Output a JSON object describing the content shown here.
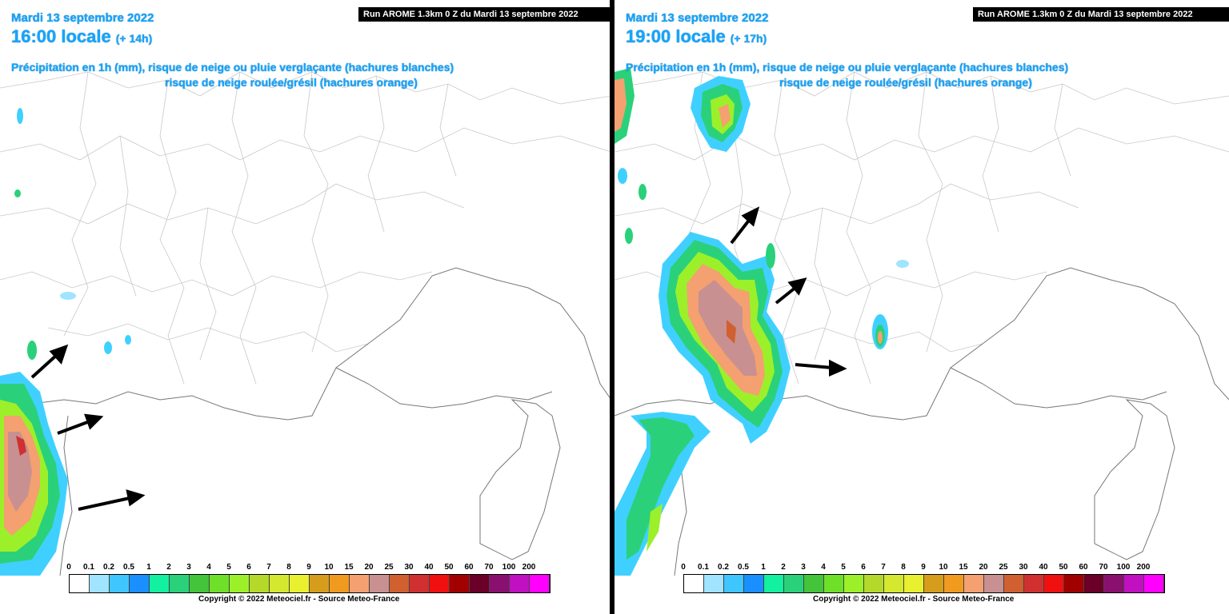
{
  "left_panel": {
    "date": "Mardi 13 septembre 2022",
    "time": "16:00 locale",
    "lead": "(+ 14h)",
    "run": "Run AROME 1.3km 0 Z du Mardi 13 septembre 2022",
    "description_line1": "Précipitation en 1h (mm), risque de neige ou pluie verglaçante (hachures blanches)",
    "description_line2": "risque de neige roulée/grésil (hachures orange)",
    "copyright": "Copyright © 2022 Meteociel.fr - Source Meteo-France"
  },
  "right_panel": {
    "date": "Mardi 13 septembre 2022",
    "time": "19:00 locale",
    "lead": "(+ 17h)",
    "run": "Run AROME 1.3km 0 Z du Mardi 13 septembre 2022",
    "description_line1": "Précipitation en 1h (mm), risque de neige ou pluie verglaçante (hachures blanches)",
    "description_line2": "risque de neige roulée/grésil (hachures orange)",
    "copyright": "Copyright © 2022 Meteociel.fr - Source Meteo-France"
  },
  "legend": {
    "labels": [
      "0",
      "0.1",
      "0.2",
      "0.5",
      "1",
      "2",
      "3",
      "4",
      "5",
      "6",
      "7",
      "8",
      "9",
      "10",
      "15",
      "20",
      "25",
      "30",
      "40",
      "50",
      "60",
      "70",
      "100",
      "200"
    ],
    "colors": [
      "#ffffff",
      "#a0e4ff",
      "#3fc6ff",
      "#1a8fff",
      "#12f0a0",
      "#2ad17a",
      "#43c43a",
      "#6ee02a",
      "#9cf02a",
      "#b4d92a",
      "#d4e830",
      "#e8f030",
      "#d69c1c",
      "#f09a20",
      "#f4a070",
      "#c89090",
      "#d06030",
      "#d03030",
      "#f01010",
      "#a00000",
      "#6a0028",
      "#8a1070",
      "#c010c0",
      "#ff00ff"
    ]
  },
  "icons": [
    "arrow-icon"
  ]
}
